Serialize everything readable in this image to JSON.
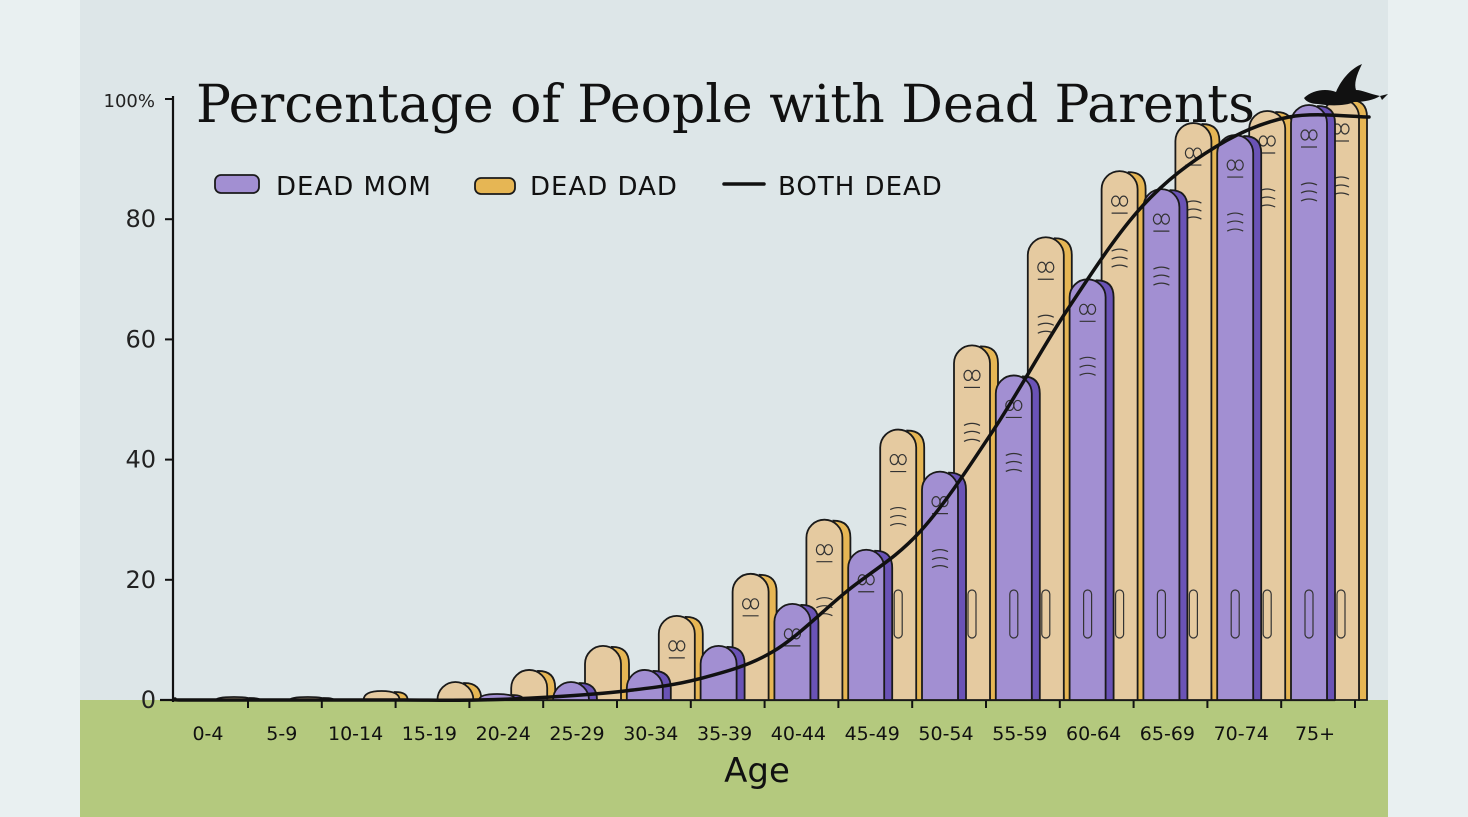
{
  "chart_data": {
    "type": "bar",
    "title": "Percentage of People with Dead Parents",
    "xlabel": "Age",
    "ylabel": "",
    "ylim": [
      0,
      100
    ],
    "yticks": [
      "0",
      "20",
      "40",
      "60",
      "80",
      "100%"
    ],
    "grid": false,
    "legend_position": "top-left",
    "categories": [
      "0-4",
      "5-9",
      "10-14",
      "15-19",
      "20-24",
      "25-29",
      "30-34",
      "35-39",
      "40-44",
      "45-49",
      "50-54",
      "55-59",
      "60-64",
      "65-69",
      "70-74",
      "75+"
    ],
    "series": [
      {
        "name": "DEAD MOM",
        "type": "bar",
        "color": "#a28fd2",
        "values": [
          0,
          0,
          0,
          0,
          1,
          3,
          5,
          9,
          16,
          25,
          38,
          54,
          70,
          85,
          94,
          99
        ]
      },
      {
        "name": "DEAD DAD",
        "type": "bar",
        "color": "#e6b654",
        "values": [
          0.5,
          0.5,
          1.5,
          3,
          5,
          9,
          14,
          21,
          30,
          45,
          59,
          77,
          88,
          96,
          98,
          100
        ]
      },
      {
        "name": "BOTH DEAD",
        "type": "line",
        "color": "#111111",
        "values": [
          0,
          0,
          0,
          0,
          0,
          0.5,
          1.5,
          3.5,
          8,
          18,
          28,
          45,
          65,
          82,
          92,
          97
        ]
      }
    ]
  }
}
